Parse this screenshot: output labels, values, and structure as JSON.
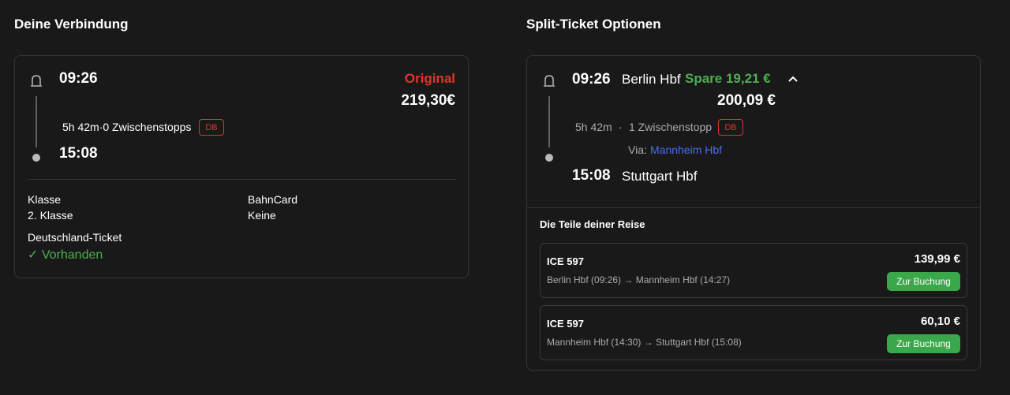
{
  "left": {
    "title": "Deine Verbindung",
    "departure_time": "09:26",
    "arrival_time": "15:08",
    "label": "Original",
    "price": "219,30€",
    "duration": "5h 42m·0 Zwischenstopps",
    "operator": "DB",
    "details": [
      {
        "label": "Klasse",
        "value": "2. Klasse"
      },
      {
        "label": "BahnCard",
        "value": "Keine"
      },
      {
        "label": "Deutschland-Ticket",
        "value": "✓ Vorhanden"
      }
    ]
  },
  "right": {
    "title": "Split-Ticket Optionen",
    "departure_time": "09:26",
    "departure_station": "Berlin Hbf",
    "savings": "Spare 19,21 €",
    "price": "200,09 €",
    "duration": "5h 42m",
    "separator": "·",
    "stops": "1 Zwischenstopp",
    "operator": "DB",
    "via_label": "Via:",
    "via_station": "Mannheim Hbf",
    "arrival_time": "15:08",
    "arrival_station": "Stuttgart Hbf",
    "parts_title": "Die Teile deiner Reise",
    "parts": [
      {
        "train": "ICE 597",
        "route": "Berlin Hbf (09:26) → Mannheim Hbf (14:27)",
        "price": "139,99 €",
        "button": "Zur Buchung"
      },
      {
        "train": "ICE 597",
        "route": "Mannheim Hbf (14:30) → Stuttgart Hbf (15:08)",
        "price": "60,10 €",
        "button": "Zur Buchung"
      }
    ]
  }
}
